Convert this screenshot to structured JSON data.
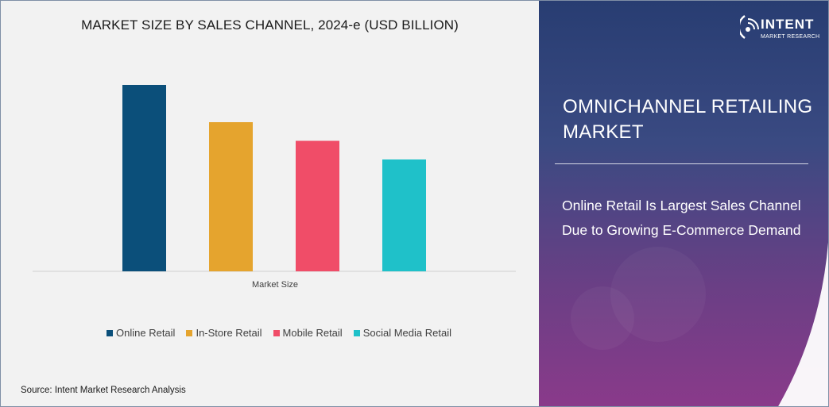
{
  "chart_data": {
    "type": "bar",
    "title": "MARKET SIZE BY SALES CHANNEL, 2024-e (USD BILLION)",
    "categories": [
      "Market Size"
    ],
    "series": [
      {
        "name": "Online Retail",
        "values": [
          100
        ],
        "color": "#0b4f7a"
      },
      {
        "name": "In-Store Retail",
        "values": [
          80
        ],
        "color": "#e5a42e"
      },
      {
        "name": "Mobile Retail",
        "values": [
          70
        ],
        "color": "#f04d68"
      },
      {
        "name": "Social Media Retail",
        "values": [
          60
        ],
        "color": "#1fc1c9"
      }
    ],
    "xlabel": "",
    "ylabel": "",
    "ylim": [
      0,
      100
    ],
    "grid": false,
    "legend": "bottom"
  },
  "source_text": "Source: Intent Market Research Analysis",
  "sidebar": {
    "logo_text": "INTENT",
    "logo_subtext": "MARKET RESEARCH",
    "market_title": "OMNICHANNEL RETAILING MARKET",
    "headline": "Online Retail Is Largest Sales Channel Due to Growing E-Commerce Demand"
  },
  "colors": {
    "axis": "#d0d0d0",
    "panel_top": "#283d72",
    "panel_bottom": "#8a3a8a"
  }
}
